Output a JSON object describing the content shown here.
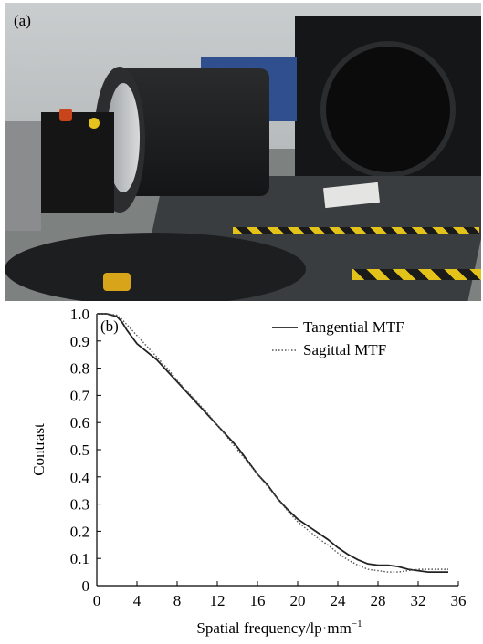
{
  "photo": {
    "label": "(a)"
  },
  "chart_data": {
    "type": "line",
    "panel_label": "(b)",
    "title": "",
    "xlabel": "Spatial frequency/lp·mm",
    "xlabel_sup": "−1",
    "ylabel": "Contrast",
    "xlim": [
      0,
      36
    ],
    "ylim": [
      0,
      1.0
    ],
    "xticks": [
      0,
      4,
      8,
      12,
      16,
      20,
      24,
      28,
      32,
      36
    ],
    "yticks": [
      0,
      0.1,
      0.2,
      0.3,
      0.4,
      0.5,
      0.6,
      0.7,
      0.8,
      0.9,
      1.0
    ],
    "xtick_labels": [
      "0",
      "4",
      "8",
      "12",
      "16",
      "20",
      "24",
      "28",
      "32",
      "36"
    ],
    "ytick_labels": [
      "0",
      "0.1",
      "0.2",
      "0.3",
      "0.4",
      "0.5",
      "0.6",
      "0.7",
      "0.8",
      "0.9",
      "1.0"
    ],
    "grid": false,
    "legend_position": "top-right",
    "series": [
      {
        "name": "Tangential MTF",
        "style": "solid",
        "color": "#222222",
        "x": [
          0,
          1,
          2,
          2.5,
          3,
          4,
          5,
          6,
          7,
          8,
          9,
          10,
          11,
          12,
          13,
          14,
          15,
          16,
          17,
          18,
          19,
          20,
          21,
          22,
          23,
          24,
          25,
          26,
          27,
          28,
          29,
          30,
          31,
          32,
          33,
          34,
          35
        ],
        "y": [
          1.0,
          1.0,
          0.99,
          0.97,
          0.94,
          0.89,
          0.86,
          0.83,
          0.79,
          0.75,
          0.71,
          0.67,
          0.63,
          0.59,
          0.55,
          0.51,
          0.46,
          0.41,
          0.37,
          0.32,
          0.28,
          0.245,
          0.22,
          0.195,
          0.17,
          0.14,
          0.115,
          0.095,
          0.08,
          0.075,
          0.075,
          0.07,
          0.06,
          0.055,
          0.05,
          0.05,
          0.05
        ]
      },
      {
        "name": "Sagittal MTF",
        "style": "dotted",
        "color": "#555555",
        "x": [
          0,
          1,
          2,
          2.5,
          3,
          4,
          5,
          6,
          7,
          8,
          9,
          10,
          11,
          12,
          13,
          14,
          15,
          16,
          17,
          18,
          19,
          20,
          21,
          22,
          23,
          24,
          25,
          26,
          27,
          28,
          29,
          30,
          31,
          32,
          33,
          34,
          35
        ],
        "y": [
          1.0,
          1.0,
          0.995,
          0.98,
          0.96,
          0.92,
          0.88,
          0.84,
          0.8,
          0.755,
          0.715,
          0.675,
          0.635,
          0.59,
          0.545,
          0.5,
          0.455,
          0.41,
          0.365,
          0.32,
          0.275,
          0.235,
          0.205,
          0.175,
          0.15,
          0.12,
          0.095,
          0.075,
          0.06,
          0.055,
          0.05,
          0.05,
          0.055,
          0.06,
          0.06,
          0.06,
          0.06
        ]
      }
    ]
  }
}
